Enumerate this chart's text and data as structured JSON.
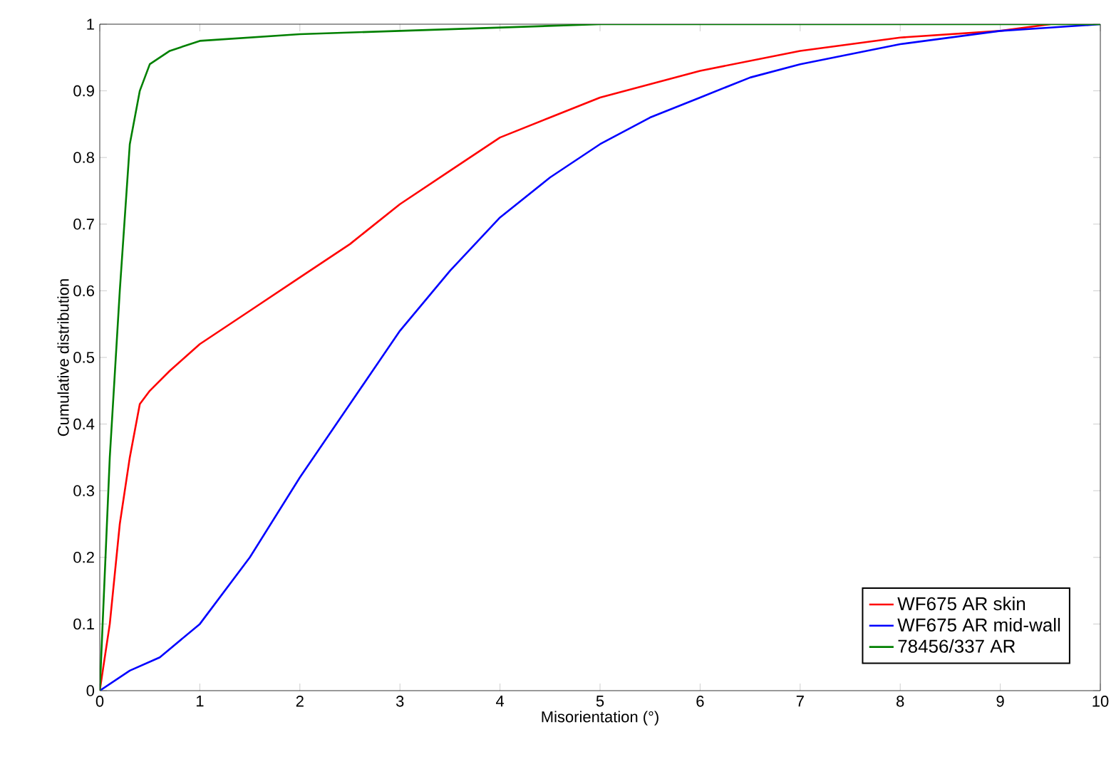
{
  "chart_data": {
    "type": "line",
    "xlabel": "Misorientation (°)",
    "ylabel": "Cumulative distribution",
    "xlim": [
      0,
      10
    ],
    "ylim": [
      0,
      1
    ],
    "xticks": [
      0,
      1,
      2,
      3,
      4,
      5,
      6,
      7,
      8,
      9,
      10
    ],
    "yticks": [
      0,
      0.1,
      0.2,
      0.3,
      0.4,
      0.5,
      0.6,
      0.7,
      0.8,
      0.9,
      1
    ],
    "legend": "bottom right",
    "grid": false,
    "marker": "none",
    "line_style": "solid",
    "series": [
      {
        "name": "WF675 AR skin",
        "color": "#ff0000",
        "x": [
          0,
          0.1,
          0.2,
          0.3,
          0.4,
          0.5,
          0.7,
          1,
          1.5,
          2,
          2.5,
          3,
          3.5,
          4,
          4.5,
          5,
          5.5,
          6,
          7,
          8,
          9,
          9.5
        ],
        "values": [
          0,
          0.1,
          0.25,
          0.35,
          0.43,
          0.45,
          0.48,
          0.52,
          0.57,
          0.62,
          0.67,
          0.73,
          0.78,
          0.83,
          0.86,
          0.89,
          0.91,
          0.93,
          0.96,
          0.98,
          0.99,
          1
        ]
      },
      {
        "name": "WF675 AR mid-wall",
        "color": "#0000ff",
        "x": [
          0,
          0.3,
          0.6,
          1,
          1.5,
          2,
          2.5,
          3,
          3.5,
          4,
          4.5,
          5,
          5.5,
          6,
          6.5,
          7,
          8,
          9,
          9.5,
          10
        ],
        "values": [
          0,
          0.03,
          0.05,
          0.1,
          0.2,
          0.32,
          0.43,
          0.54,
          0.63,
          0.71,
          0.77,
          0.82,
          0.86,
          0.89,
          0.92,
          0.94,
          0.97,
          0.99,
          0.995,
          1
        ]
      },
      {
        "name": "78456/337 AR",
        "color": "#008000",
        "x": [
          0,
          0.1,
          0.2,
          0.3,
          0.4,
          0.5,
          0.7,
          1,
          1.5,
          2,
          3,
          4,
          5,
          10
        ],
        "values": [
          0,
          0.35,
          0.6,
          0.82,
          0.9,
          0.94,
          0.96,
          0.975,
          0.98,
          0.985,
          0.99,
          0.995,
          1,
          1
        ]
      }
    ]
  }
}
